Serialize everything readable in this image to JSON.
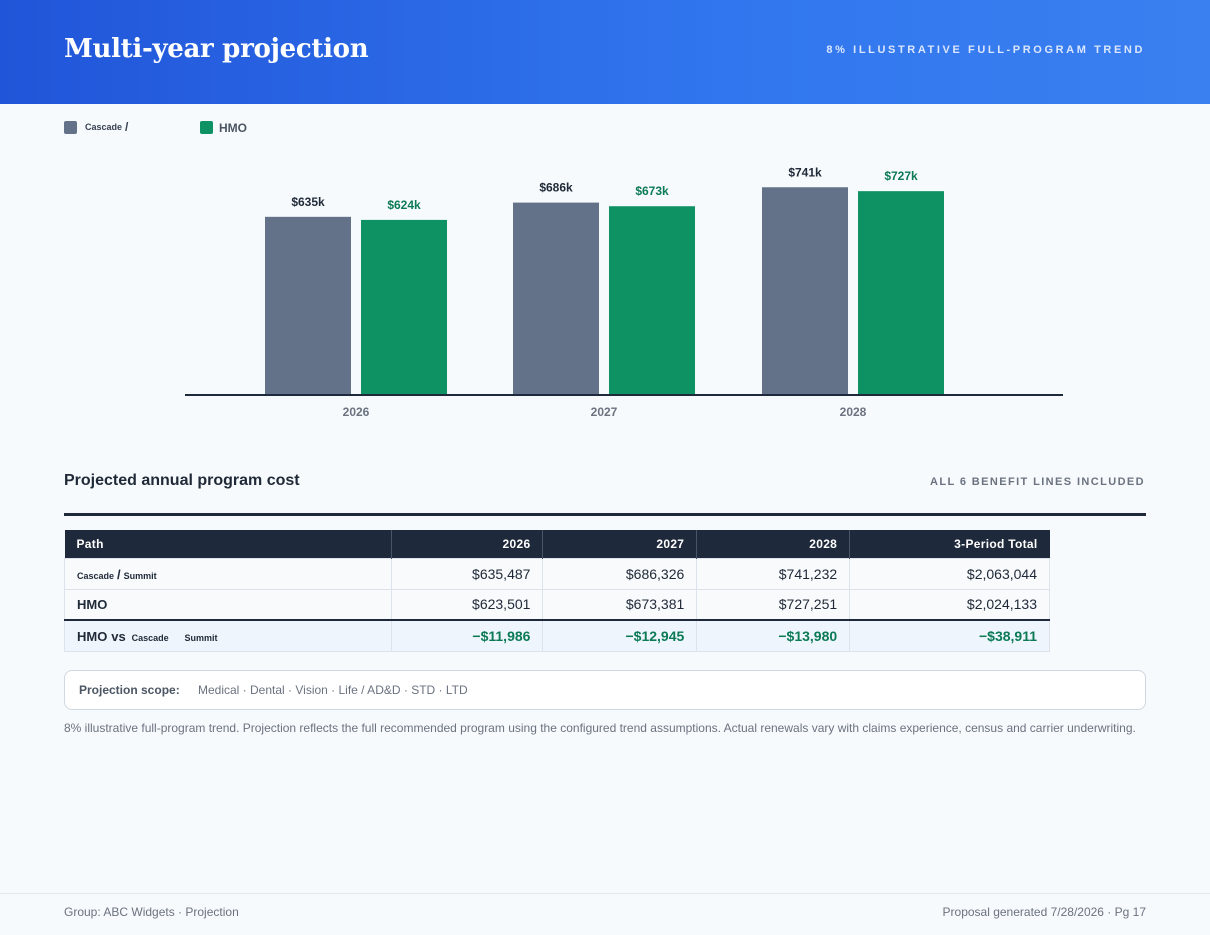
{
  "header": {
    "title": "Multi-year projection",
    "subtitle": "8% ILLUSTRATIVE FULL-PROGRAM TREND"
  },
  "legend": {
    "items": [
      {
        "label": "Cascade",
        "separator": "/",
        "color": "#637189"
      },
      {
        "label": "HMO",
        "color": "#0e9163"
      }
    ]
  },
  "chart_data": {
    "type": "bar",
    "categories": [
      "2026",
      "2027",
      "2028"
    ],
    "series": [
      {
        "name": "Cascade /",
        "values": [
          635,
          686,
          741
        ],
        "labels": [
          "$635k",
          "$686k",
          "$741k"
        ],
        "color": "#637189",
        "label_color": "#1f2937"
      },
      {
        "name": "HMO",
        "values": [
          624,
          673,
          727
        ],
        "labels": [
          "$624k",
          "$673k",
          "$727k"
        ],
        "color": "#0e9163",
        "label_color": "#0b7a55"
      }
    ],
    "title": "",
    "xlabel": "",
    "ylabel": "",
    "ylim": [
      0,
      767
    ]
  },
  "section": {
    "title": "Projected annual program cost",
    "note": "ALL 6 BENEFIT LINES INCLUDED"
  },
  "table": {
    "headers": [
      "Path",
      "2026",
      "2027",
      "2028",
      "3-Period Total"
    ],
    "rows": [
      {
        "path_a": "Cascade",
        "path_sep": "/",
        "path_b": "Summit",
        "values": [
          "$635,487",
          "$686,326",
          "$741,232",
          "$2,063,044"
        ]
      },
      {
        "path": "HMO",
        "values": [
          "$623,501",
          "$673,381",
          "$727,251",
          "$2,024,133"
        ]
      },
      {
        "path_main": "HMO",
        "path_vs": "vs",
        "path_c": "Cascade",
        "path_d": "Summit",
        "values": [
          "−$11,986",
          "−$12,945",
          "−$13,980",
          "−$38,911"
        ]
      }
    ]
  },
  "scope": {
    "label": "Projection scope:",
    "value": "Medical · Dental · Vision · Life / AD&D · STD · LTD"
  },
  "disclaimer": "8% illustrative full-program trend. Projection reflects the full recommended program using the configured trend assumptions. Actual renewals vary with claims experience, census and carrier underwriting.",
  "footer": {
    "left": "Group: ABC Widgets · Projection",
    "right": "Proposal generated 7/28/2026 · Pg 17"
  }
}
